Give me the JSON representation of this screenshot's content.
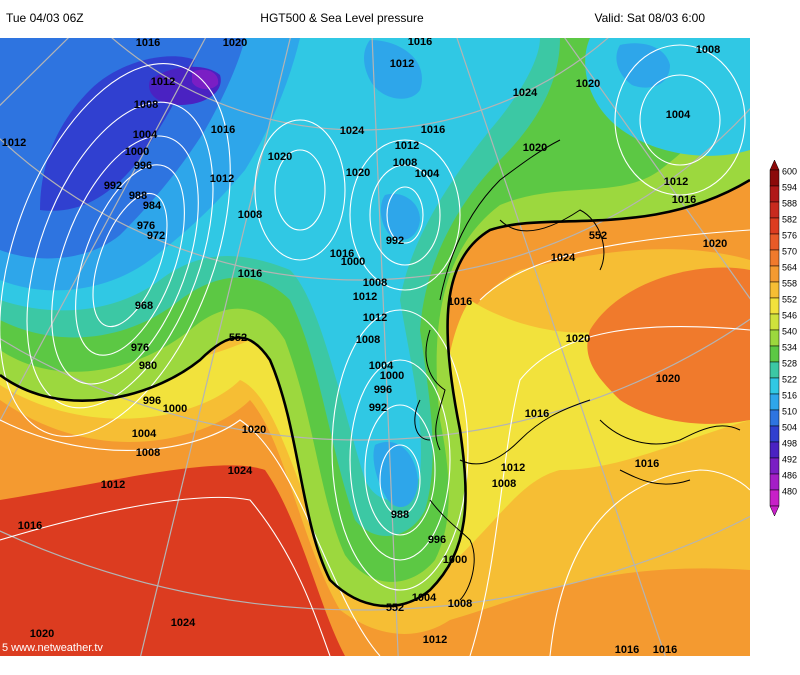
{
  "header": {
    "left": "Tue 04/03 06Z",
    "center": "HGT500 & Sea Level pressure",
    "right": "Valid: Sat 08/03 6:00"
  },
  "legend": [
    {
      "label": "600",
      "color": "#8b0a0a"
    },
    {
      "label": "594",
      "color": "#b01818"
    },
    {
      "label": "588",
      "color": "#c82a1e"
    },
    {
      "label": "582",
      "color": "#dc3c20"
    },
    {
      "label": "576",
      "color": "#e85a28"
    },
    {
      "label": "570",
      "color": "#f07a2c"
    },
    {
      "label": "564",
      "color": "#f49a30"
    },
    {
      "label": "558",
      "color": "#f6be34"
    },
    {
      "label": "552",
      "color": "#f2e23c"
    },
    {
      "label": "546",
      "color": "#cfe23c"
    },
    {
      "label": "540",
      "color": "#9cd83e"
    },
    {
      "label": "534",
      "color": "#5cc844"
    },
    {
      "label": "528",
      "color": "#3cc8a4"
    },
    {
      "label": "522",
      "color": "#30c8e4"
    },
    {
      "label": "516",
      "color": "#2ea6ea"
    },
    {
      "label": "510",
      "color": "#2e74e0"
    },
    {
      "label": "504",
      "color": "#3040d0"
    },
    {
      "label": "498",
      "color": "#4a22c2"
    },
    {
      "label": "492",
      "color": "#7a1ec4"
    },
    {
      "label": "486",
      "color": "#a41ec6"
    },
    {
      "label": "480",
      "color": "#c820c8"
    }
  ],
  "isobar_labels": [
    "1016",
    "1020",
    "1016",
    "1008",
    "1012",
    "1012",
    "1020",
    "1024",
    "1008",
    "1004",
    "1016",
    "1004",
    "1024",
    "1016",
    "1012",
    "1000",
    "1012",
    "1020",
    "996",
    "1008",
    "1004",
    "1020",
    "1020",
    "1012",
    "992",
    "1012",
    "988",
    "1016",
    "984",
    "1008",
    "976",
    "972",
    "992",
    "1020",
    "1016",
    "1000",
    "1024",
    "1016",
    "1008",
    "1012",
    "1016",
    "968",
    "1012",
    "1008",
    "1020",
    "976",
    "1004",
    "980",
    "1000",
    "1020",
    "996",
    "996",
    "992",
    "1000",
    "1016",
    "1004",
    "1020",
    "1008",
    "1016",
    "1012",
    "1024",
    "1008",
    "1012",
    "988",
    "1016",
    "996",
    "1000",
    "1004",
    "1008",
    "1024",
    "1020",
    "1012",
    "1016",
    "1016"
  ],
  "height_labels": [
    "552",
    "552",
    "552"
  ],
  "watermark": "5 www.netweather.tv"
}
